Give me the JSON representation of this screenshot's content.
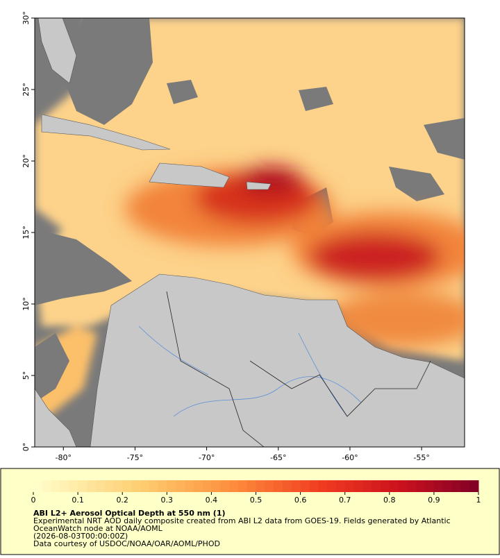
{
  "map": {
    "lon_range": [
      -82,
      -52
    ],
    "lat_range": [
      0,
      30
    ],
    "lon_ticks": [
      {
        "value": -80,
        "label": "-80°"
      },
      {
        "value": -75,
        "label": "-75°"
      },
      {
        "value": -70,
        "label": "-70°"
      },
      {
        "value": -65,
        "label": "-65°"
      },
      {
        "value": -60,
        "label": "-60°"
      },
      {
        "value": -55,
        "label": "-55°"
      }
    ],
    "lat_ticks": [
      {
        "value": 0,
        "label": "0°"
      },
      {
        "value": 5,
        "label": "5°"
      },
      {
        "value": 10,
        "label": "10°"
      },
      {
        "value": 15,
        "label": "15°"
      },
      {
        "value": 20,
        "label": "20°"
      },
      {
        "value": 25,
        "label": "25°"
      },
      {
        "value": 30,
        "label": "30°"
      }
    ]
  },
  "colorbar": {
    "range": [
      0,
      1
    ],
    "ticks": [
      0,
      0.1,
      0.2,
      0.3,
      0.4,
      0.5,
      0.6,
      0.7,
      0.8,
      0.9,
      1
    ]
  },
  "caption": {
    "title": "ABI L2+ Aerosol Optical Depth at 550 nm (1)",
    "lines": [
      "Experimental NRT AOD daily composite created from ABI L2 data from GOES-19. Fields generated by Atlantic",
      "OceanWatch node at NOAA/AOML",
      "(2026-08-03T00:00:00Z)",
      "Data courtesy of USDOC/NOAA/OAR/AOML/PHOD"
    ]
  }
}
